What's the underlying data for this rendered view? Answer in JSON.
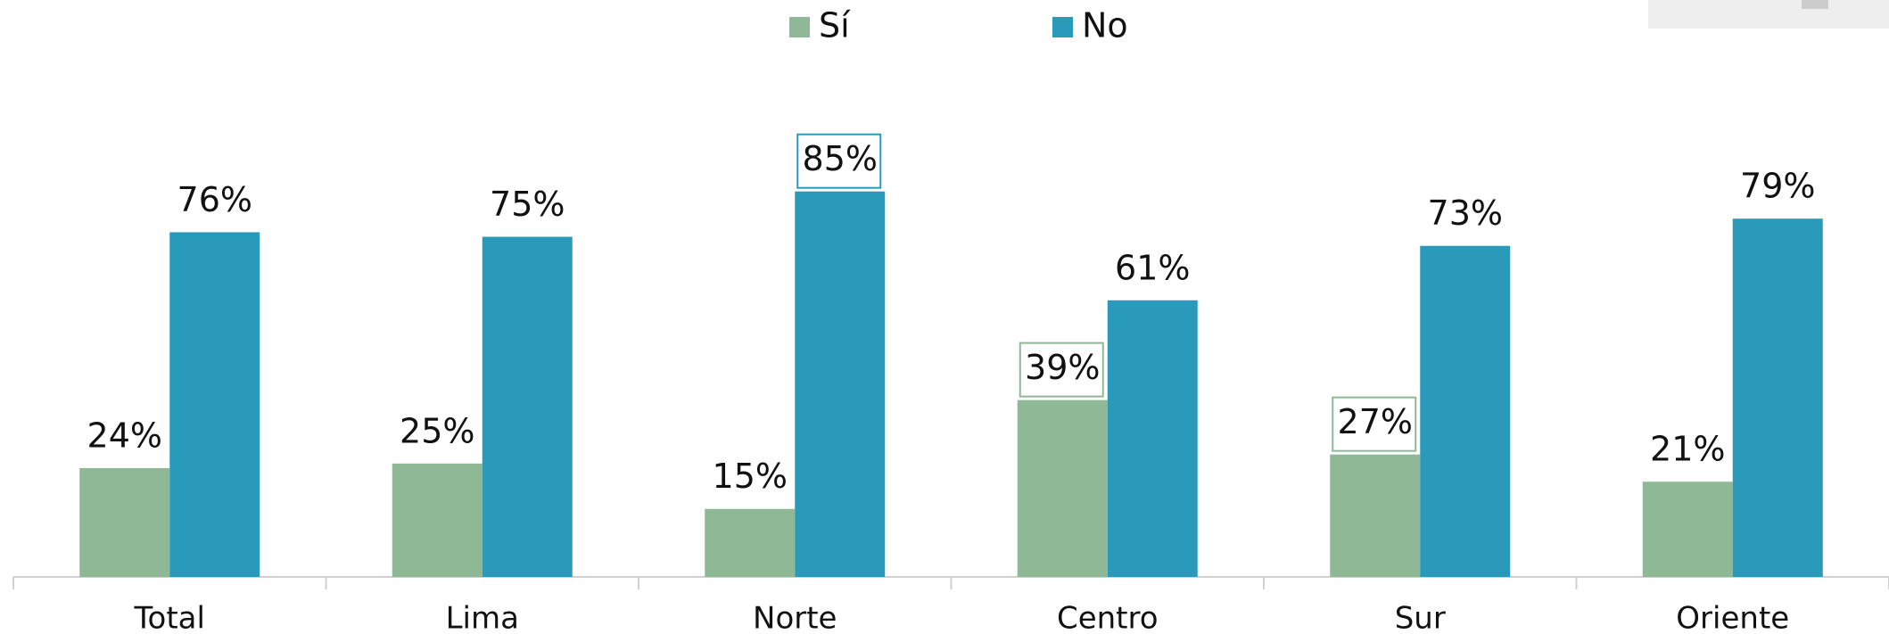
{
  "chart_data": {
    "type": "bar",
    "categories": [
      "Total",
      "Lima",
      "Norte",
      "Centro",
      "Sur",
      "Oriente"
    ],
    "series": [
      {
        "name": "Sí",
        "color": "#8fb996",
        "values": [
          24,
          25,
          15,
          39,
          27,
          21
        ],
        "value_labels": [
          "24%",
          "25%",
          "15%",
          "39%",
          "27%",
          "21%"
        ],
        "boxed": [
          false,
          false,
          false,
          true,
          true,
          false
        ]
      },
      {
        "name": "No",
        "color": "#2a9aba",
        "values": [
          76,
          75,
          85,
          61,
          73,
          79
        ],
        "value_labels": [
          "76%",
          "75%",
          "85%",
          "61%",
          "73%",
          "79%"
        ],
        "boxed": [
          false,
          false,
          true,
          false,
          false,
          false
        ]
      }
    ],
    "ylim": [
      0,
      100
    ],
    "legend": "top"
  }
}
